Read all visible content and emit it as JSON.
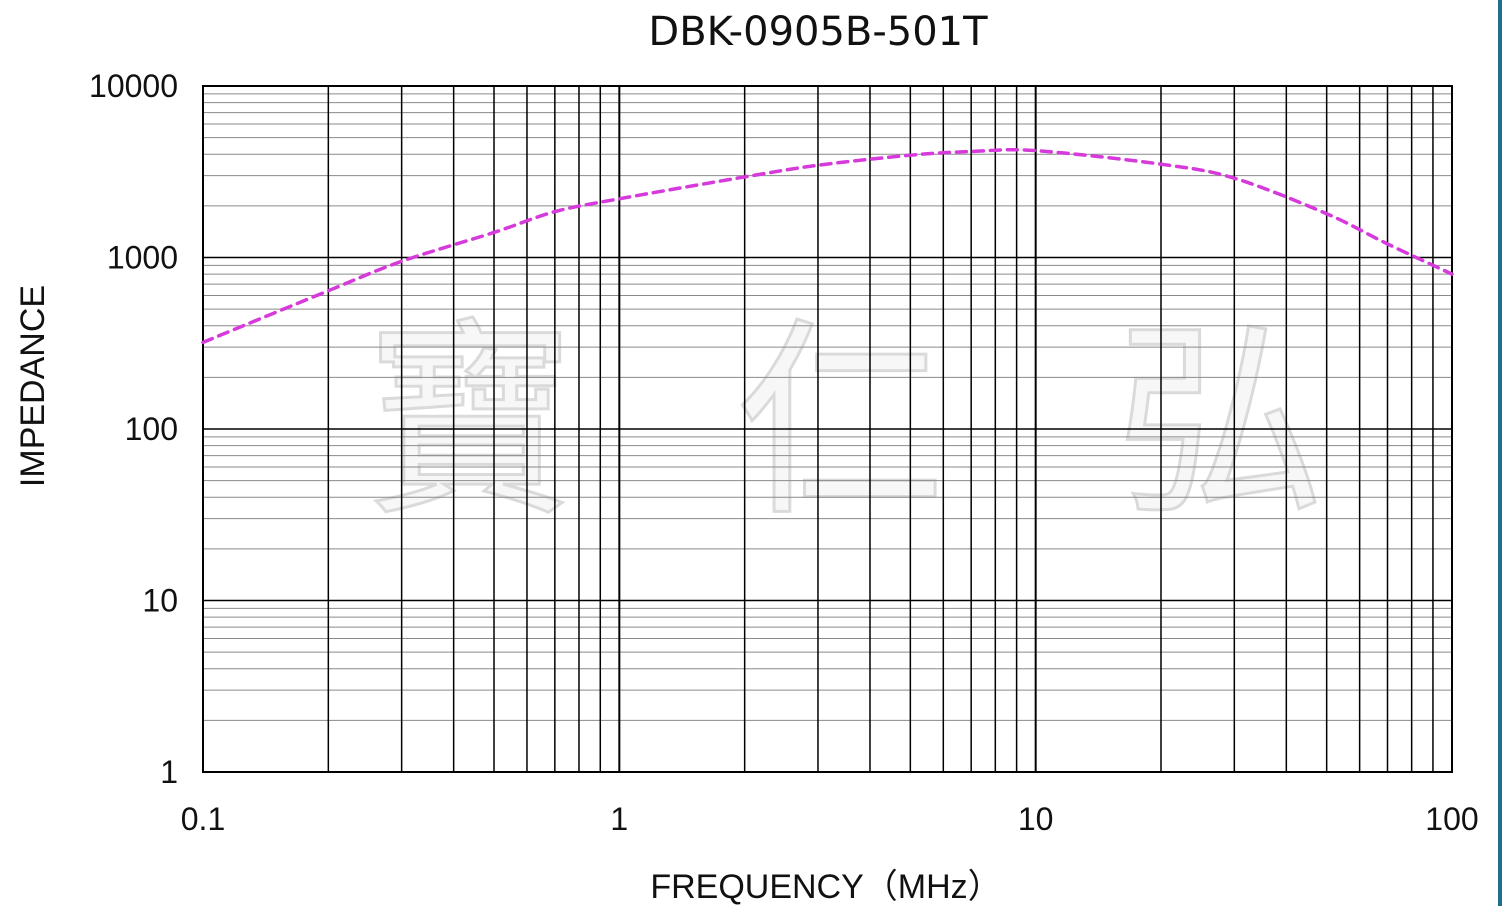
{
  "chart_data": {
    "type": "line",
    "title": "DBK-0905B-501T",
    "xlabel": "FREQUENCY（MHz）",
    "ylabel": "IMPEDANCE",
    "xscale": "log",
    "yscale": "log",
    "xlim": [
      0.1,
      100
    ],
    "ylim": [
      1,
      10000
    ],
    "x_ticks": [
      "0.1",
      "1",
      "10",
      "100"
    ],
    "y_ticks": [
      "1",
      "10",
      "100",
      "1000",
      "10000"
    ],
    "grid": true,
    "legend": "none",
    "watermark": [
      "寶",
      "仁",
      "弘"
    ],
    "series": [
      {
        "color": "#d63adb",
        "line_style": "dashed",
        "x": [
          0.1,
          0.2,
          0.3,
          0.5,
          0.7,
          1,
          2,
          3,
          5,
          7,
          10,
          20,
          30,
          50,
          70,
          100
        ],
        "y": [
          320,
          640,
          950,
          1400,
          1850,
          2200,
          2950,
          3450,
          3950,
          4150,
          4200,
          3500,
          2900,
          1800,
          1200,
          800
        ]
      }
    ]
  }
}
